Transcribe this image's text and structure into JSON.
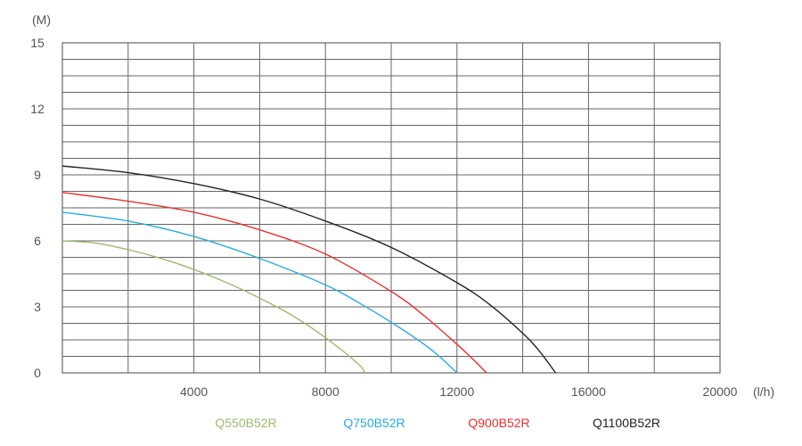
{
  "chart_data": {
    "type": "line",
    "title": "",
    "xlabel": "(l/h)",
    "ylabel": "(M)",
    "xlim": [
      0,
      20000
    ],
    "ylim": [
      0,
      15
    ],
    "x_ticks": [
      4000,
      8000,
      12000,
      16000,
      20000
    ],
    "y_ticks": [
      0,
      3,
      6,
      9,
      12,
      15
    ],
    "x_tick_labels": [
      "4000",
      "8000",
      "12000",
      "16000",
      "20000"
    ],
    "y_tick_labels": [
      "0",
      "3",
      "6",
      "9",
      "12",
      "15"
    ],
    "grid": true,
    "legend_position": "bottom",
    "series": [
      {
        "name": "Q550B52R",
        "color": "#9dbb6e",
        "x": [
          0,
          1000,
          2000,
          3000,
          4000,
          5000,
          6000,
          7000,
          8000,
          9000,
          9200
        ],
        "y": [
          6.0,
          5.9,
          5.6,
          5.2,
          4.7,
          4.1,
          3.4,
          2.6,
          1.6,
          0.4,
          0.0
        ]
      },
      {
        "name": "Q750B52R",
        "color": "#29abe2",
        "x": [
          0,
          2000,
          4000,
          6000,
          8000,
          9000,
          10000,
          11000,
          11500,
          12000
        ],
        "y": [
          7.3,
          6.9,
          6.2,
          5.2,
          4.0,
          3.2,
          2.3,
          1.3,
          0.7,
          0.0
        ]
      },
      {
        "name": "Q900B52R",
        "color": "#e8312f",
        "x": [
          0,
          2000,
          4000,
          6000,
          8000,
          10000,
          11000,
          12000,
          12500,
          12900
        ],
        "y": [
          8.2,
          7.8,
          7.3,
          6.5,
          5.4,
          3.7,
          2.6,
          1.3,
          0.6,
          0.0
        ]
      },
      {
        "name": "Q1100B52R",
        "color": "#222222",
        "x": [
          0,
          2000,
          4000,
          6000,
          8000,
          10000,
          12000,
          13000,
          14000,
          14500,
          15000
        ],
        "y": [
          9.4,
          9.1,
          8.6,
          7.9,
          6.9,
          5.7,
          4.1,
          3.1,
          1.8,
          1.0,
          0.0
        ]
      }
    ]
  }
}
